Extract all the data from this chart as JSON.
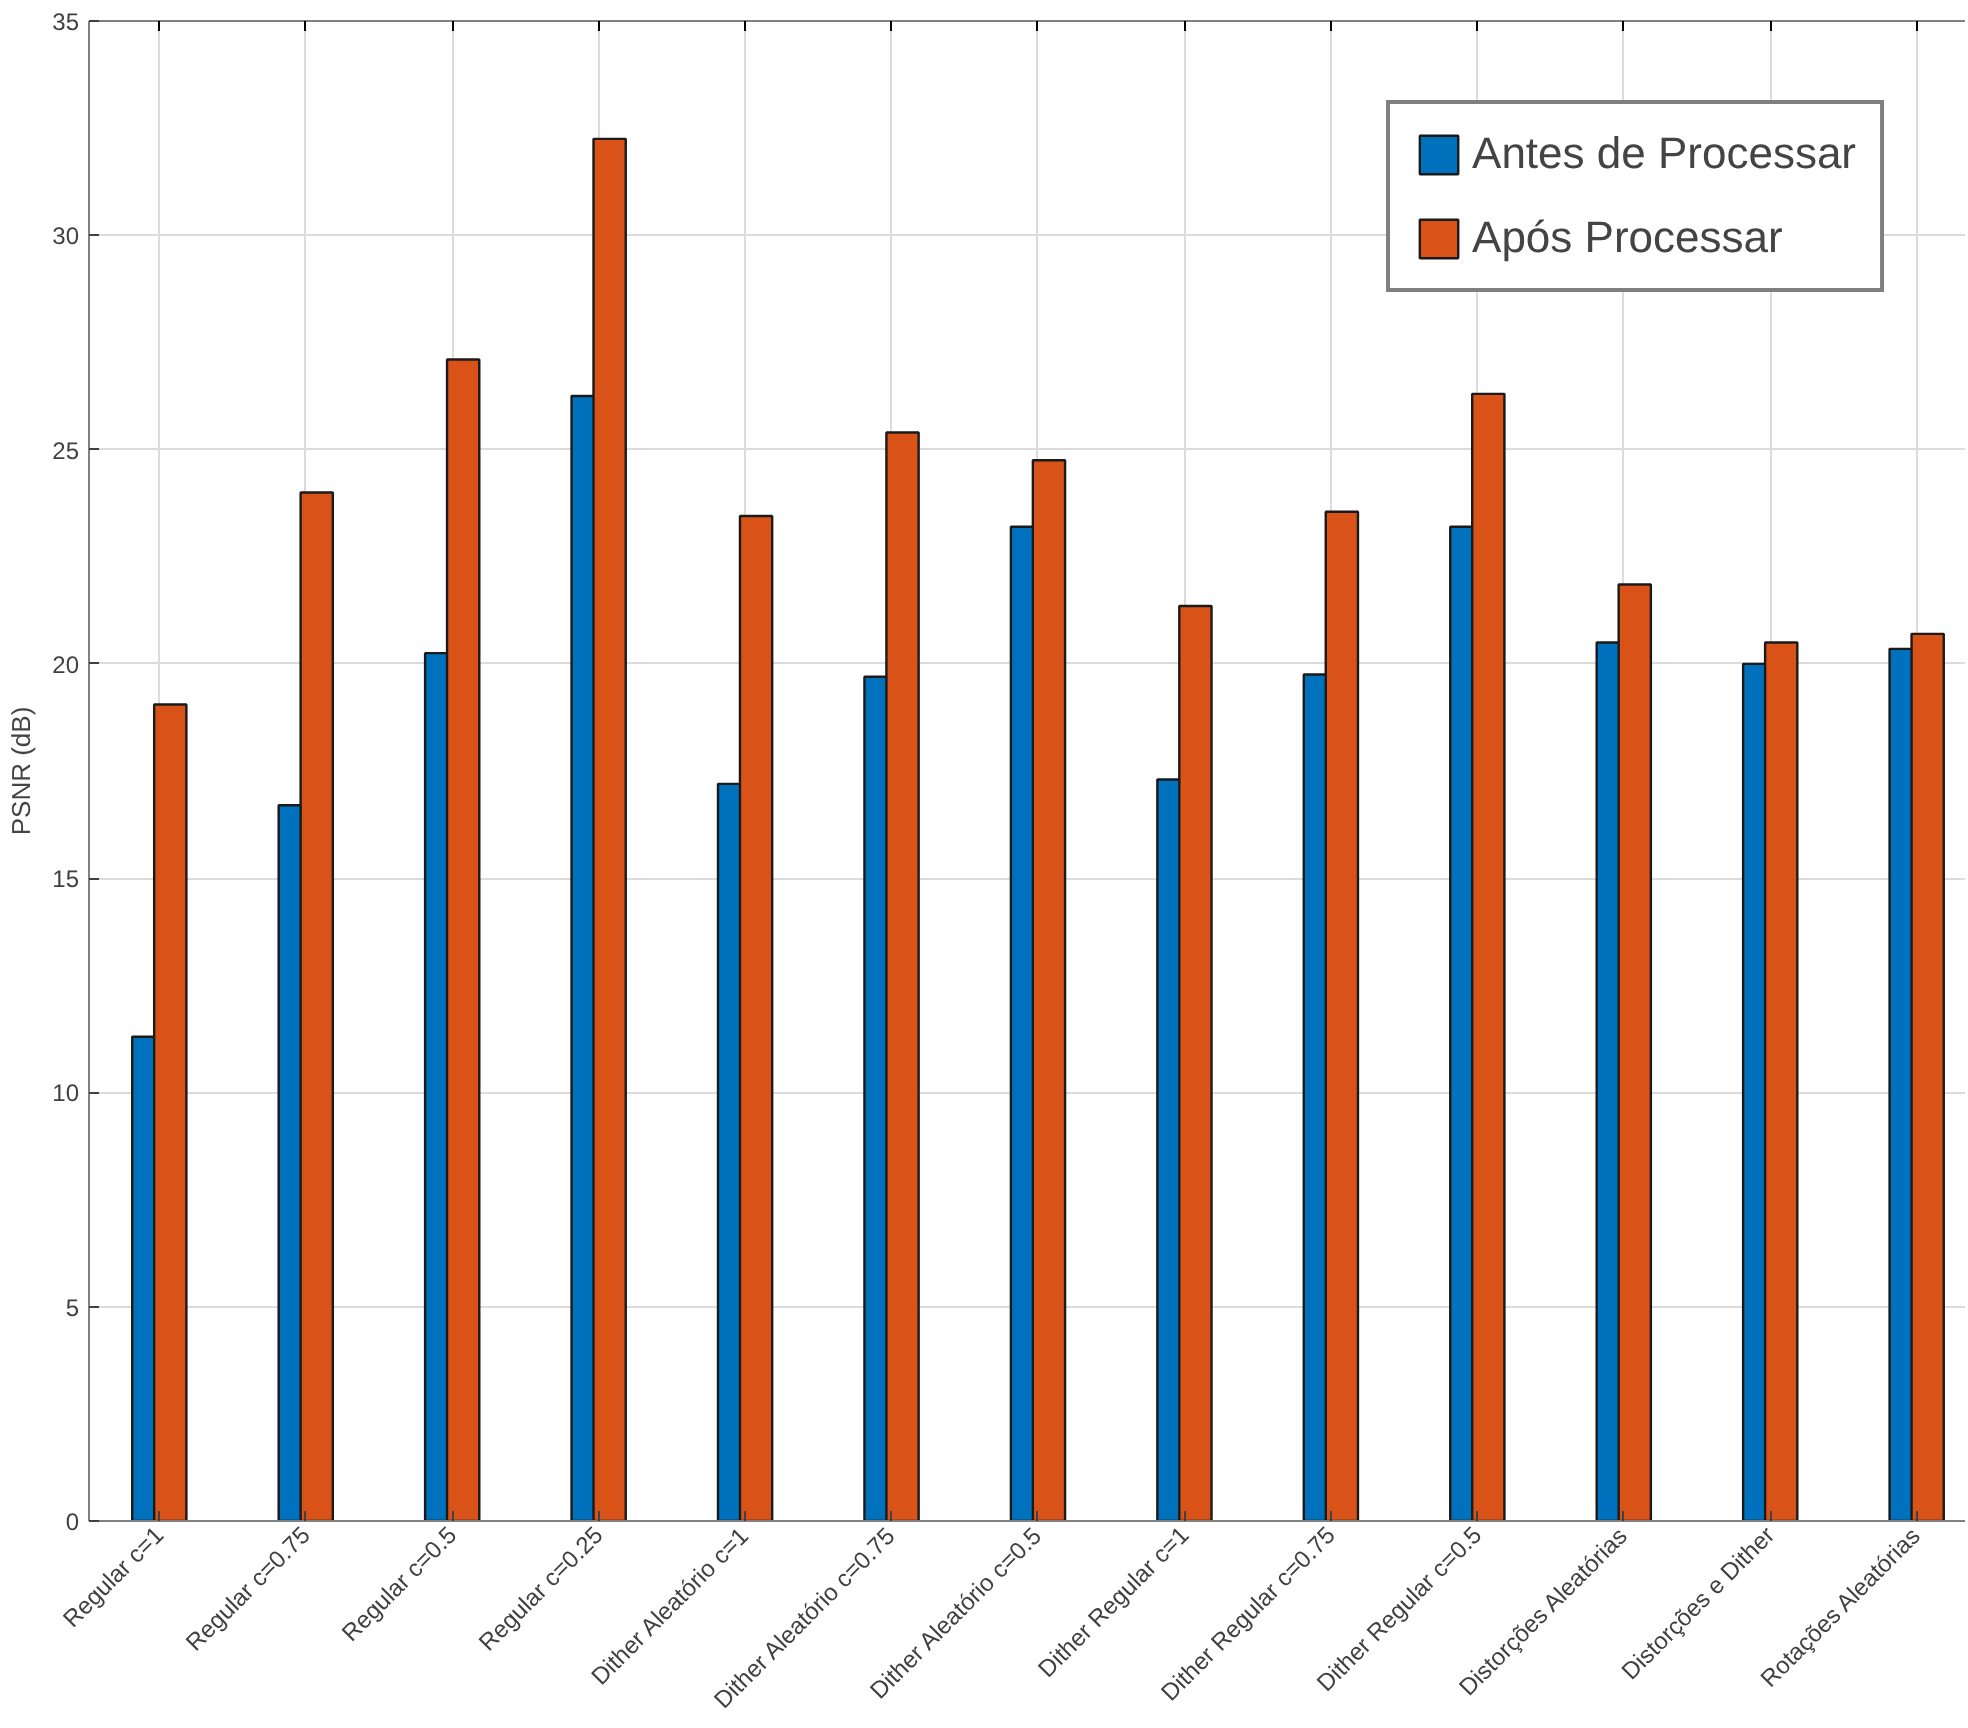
{
  "chart_data": {
    "type": "bar",
    "ylabel": "PSNR (dB)",
    "categories": [
      "Regular c=1",
      "Regular c=0.75",
      "Regular c=0.5",
      "Regular c=0.25",
      "Dither Aleatório c=1",
      "Dither Aleatório c=0.75",
      "Dither Aleatório c=0.5",
      "Dither Regular c=1",
      "Dither Regular c=0.75",
      "Dither Regular c=0.5",
      "Distorções Aleatórias",
      "Distorções e Dither",
      "Rotações Aleatórias"
    ],
    "series": [
      {
        "name": "Antes de Processar",
        "color": "#0072bd",
        "values": [
          11.3,
          16.7,
          20.25,
          26.25,
          17.2,
          19.7,
          23.2,
          17.3,
          19.75,
          23.2,
          20.5,
          20.0,
          20.35
        ]
      },
      {
        "name": "Após Processar",
        "color": "#d95319",
        "values": [
          19.05,
          24.0,
          27.1,
          32.25,
          23.45,
          25.4,
          24.75,
          21.35,
          23.55,
          26.3,
          21.85,
          20.5,
          20.7
        ]
      }
    ],
    "ylim": [
      0,
      35
    ],
    "yticks": [
      0,
      5,
      10,
      15,
      20,
      25,
      30,
      35
    ],
    "grid": true,
    "legend": "top right"
  }
}
